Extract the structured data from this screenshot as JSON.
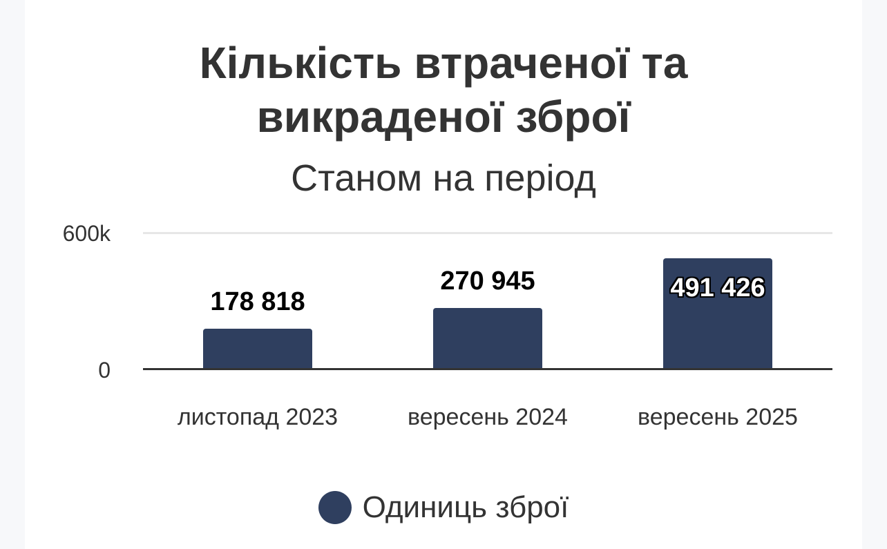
{
  "chart_data": {
    "type": "bar",
    "title": "Кількість втраченої та викраденої зброї",
    "title_lines": [
      "Кількість втраченої та",
      "викраденої зброї"
    ],
    "subtitle": "Станом на період",
    "categories": [
      "листопад 2023",
      "вересень 2024",
      "вересень 2025"
    ],
    "series": [
      {
        "name": "Одиниць зброї",
        "color": "#2f3f5f",
        "values": [
          178818,
          270945,
          491426
        ],
        "labels": [
          "178 818",
          "270 945",
          "491 426"
        ]
      }
    ],
    "xlabel": "",
    "ylabel": "",
    "ylim": [
      0,
      600000
    ],
    "y_ticks": [
      {
        "value": 0,
        "label": "0"
      },
      {
        "value": 600000,
        "label": "600k"
      }
    ],
    "grid": true,
    "legend_position": "bottom"
  },
  "colors": {
    "bar": "#2f3f5f",
    "text": "#333333",
    "gridline": "#e6e6e6",
    "axis": "#333333",
    "background": "#ffffff",
    "page_gutter": "#f7f8fa"
  }
}
